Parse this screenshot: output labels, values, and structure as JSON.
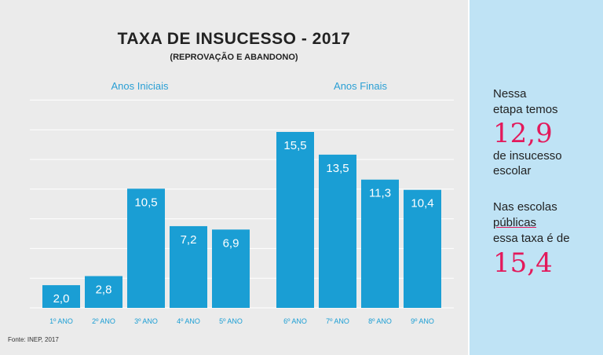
{
  "chart_data": {
    "type": "bar",
    "title": "TAXA DE INSUCESSO - 2017",
    "subtitle": "(REPROVAÇÃO E ABANDONO)",
    "groups": [
      {
        "name": "Anos Iniciais",
        "categories": [
          "1º ANO",
          "2º ANO",
          "3º ANO",
          "4º ANO",
          "5º ANO"
        ],
        "values": [
          2.0,
          2.8,
          10.5,
          7.2,
          6.9
        ],
        "labels": [
          "2,0",
          "2,8",
          "10,5",
          "7,2",
          "6,9"
        ]
      },
      {
        "name": "Anos Finais",
        "categories": [
          "6º ANO",
          "7º ANO",
          "8º ANO",
          "9º ANO"
        ],
        "values": [
          15.5,
          13.5,
          11.3,
          10.4
        ],
        "labels": [
          "15,5",
          "13,5",
          "11,3",
          "10,4"
        ]
      }
    ],
    "ylim": [
      0,
      18
    ],
    "grid": true,
    "bar_color": "#1a9ed4",
    "source": "Fonte: INEP, 2017"
  },
  "side": {
    "line1": "Nessa",
    "line2": "etapa temos",
    "value1": "12,9",
    "line3": "de insucesso",
    "line4": "escolar",
    "line5": "Nas escolas",
    "line6": "públicas",
    "line7": "essa taxa é de",
    "value2": "15,4",
    "accent": "#e3195b"
  }
}
